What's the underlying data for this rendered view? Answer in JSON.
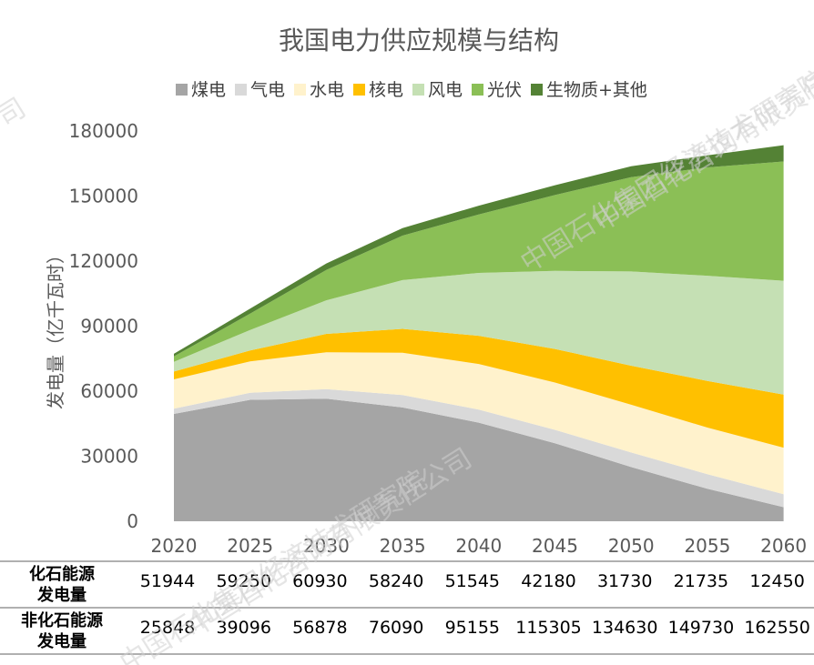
{
  "chart_data": {
    "type": "area",
    "stacked": true,
    "title": "我国电力供应规模与结构",
    "ylabel": "发电量（亿千瓦时）",
    "xlabel": "",
    "ylim": [
      0,
      180000
    ],
    "yticks": [
      0,
      30000,
      60000,
      90000,
      120000,
      150000,
      180000
    ],
    "categories": [
      "2020",
      "2025",
      "2030",
      "2035",
      "2040",
      "2045",
      "2050",
      "2055",
      "2060"
    ],
    "legend_position": "top",
    "grid": false,
    "series": [
      {
        "name": "煤电",
        "color": "#a5a5a5",
        "values": [
          49500,
          56000,
          56500,
          52500,
          45500,
          36000,
          25000,
          15000,
          6500
        ]
      },
      {
        "name": "气电",
        "color": "#d9d9d9",
        "values": [
          2444,
          3250,
          4430,
          5740,
          6045,
          6180,
          6730,
          6735,
          5950
        ]
      },
      {
        "name": "水电",
        "color": "#fff2cc",
        "values": [
          13500,
          14500,
          17000,
          19500,
          21000,
          21800,
          22000,
          21500,
          21500
        ]
      },
      {
        "name": "核电",
        "color": "#ffc000",
        "values": [
          3600,
          5000,
          8500,
          11000,
          13000,
          15500,
          18000,
          21500,
          24500
        ]
      },
      {
        "name": "风电",
        "color": "#c5e0b4",
        "values": [
          4500,
          9500,
          15500,
          22500,
          29000,
          36000,
          43500,
          48500,
          52500
        ]
      },
      {
        "name": "光伏",
        "color": "#8bbf56",
        "values": [
          2500,
          7500,
          14000,
          20500,
          27000,
          35000,
          43500,
          50000,
          55000
        ]
      },
      {
        "name": "生物质+其他",
        "color": "#548235",
        "values": [
          1200,
          2300,
          3000,
          3500,
          4000,
          4500,
          5000,
          5500,
          7500
        ]
      }
    ],
    "table": {
      "rows": [
        {
          "label_line1": "化石能源",
          "label_line2": "发电量",
          "values": [
            "51944",
            "59250",
            "60930",
            "58240",
            "51545",
            "42180",
            "31730",
            "21735",
            "12450"
          ]
        },
        {
          "label_line1": "非化石能源",
          "label_line2": "发电量",
          "values": [
            "25848",
            "39096",
            "56878",
            "76090",
            "95155",
            "115305",
            "134630",
            "149730",
            "162550"
          ]
        }
      ]
    }
  },
  "watermark": {
    "text1": "中国石化集团经济技术研究院",
    "text2": "中国石化咨询有限责任公司",
    "fragment": "司"
  }
}
